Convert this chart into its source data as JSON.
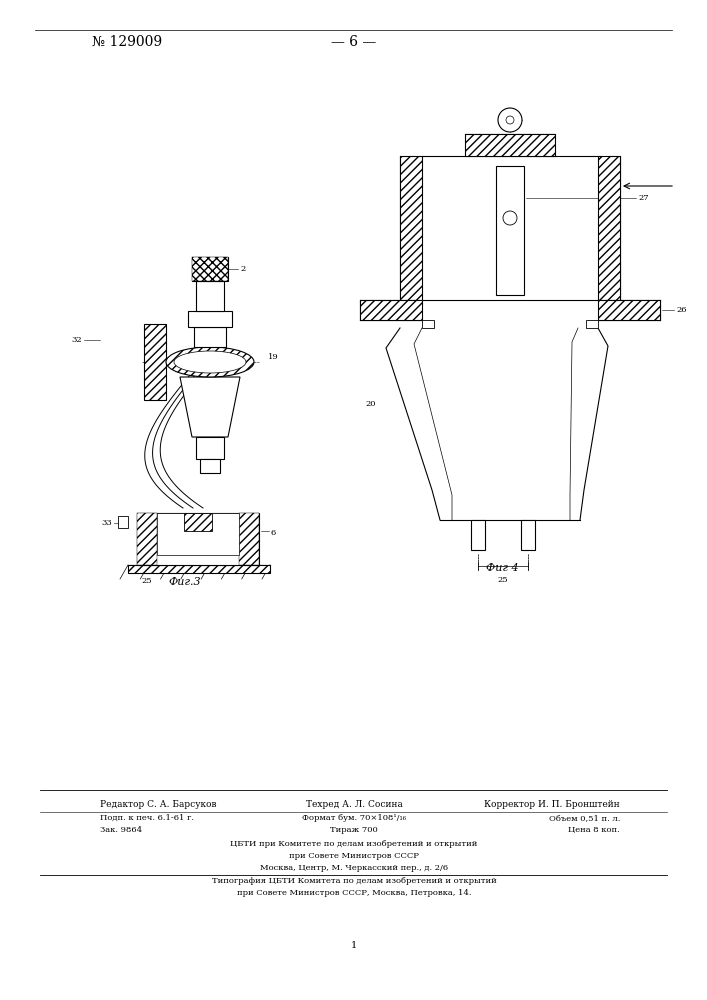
{
  "bg_color": "#ffffff",
  "page_width": 7.07,
  "page_height": 10.0,
  "header_no": "№ 129009",
  "header_page": "— 6 —",
  "fig3_caption": "Фиг.3",
  "fig4_caption": "Фиг 4",
  "label_2": "2",
  "label_6": "6",
  "label_19": "19",
  "label_20": "20",
  "label_25": "25",
  "label_26": "26",
  "label_27": "27",
  "label_32": "32",
  "label_33": "33",
  "footer_editor": "Редактор С. А. Барсуков",
  "footer_techred": "Техред А. Л. Сосина",
  "footer_corrector": "Корректор И. П. Бронштейн",
  "footer_podp": "Подп. к печ. 6.1-61 г.",
  "footer_format": "Формат бум. 70×108¹/₁₆",
  "footer_volume": "Объем 0,51 п. л.",
  "footer_zak": "Зак. 9864",
  "footer_tirazh": "Тираж 700",
  "footer_price": "Цена 8 коп.",
  "footer_cbti1": "ЦБТИ при Комитете по делам изобретений и открытий",
  "footer_cbti2": "при Совете Министров СССР",
  "footer_cbti3": "Москва, Центр, М. Черкасский пер., д. 2/6",
  "footer_tip1": "Типография ЦБТИ Комитета по делам изобретений и открытий",
  "footer_tip2": "при Совете Министров СССР, Москва, Петровка, 14.",
  "footer_page_num": "1"
}
